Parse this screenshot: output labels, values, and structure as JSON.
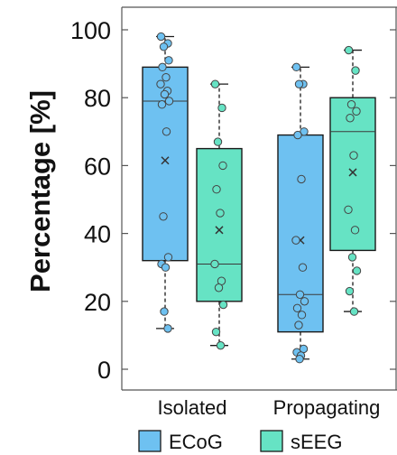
{
  "chart_data": {
    "type": "boxplot",
    "title": "",
    "xlabel": "",
    "ylabel": "Percentage [%]",
    "ylim": [
      0,
      100
    ],
    "yticks": [
      0,
      20,
      40,
      60,
      80,
      100
    ],
    "categories": [
      "Isolated",
      "Propagating"
    ],
    "legend_position": "bottom",
    "colors": {
      "ECoG": "#6ec1f1",
      "sEEG": "#66e3c4",
      "outline": "#1a1a1a"
    },
    "series": [
      {
        "name": "ECoG",
        "boxes": [
          {
            "category": "Isolated",
            "whisker_low": 12,
            "q1": 32,
            "median": 79,
            "q3": 89,
            "whisker_high": 98,
            "mean": 61.5,
            "points": [
              98,
              96,
              95,
              91,
              89,
              86,
              84,
              82,
              81,
              79,
              78,
              70,
              45,
              33,
              31,
              30,
              17,
              12
            ]
          },
          {
            "category": "Propagating",
            "whisker_low": 3,
            "q1": 11,
            "median": 22,
            "q3": 69,
            "whisker_high": 89,
            "mean": 38,
            "points": [
              89,
              84,
              84,
              70,
              69,
              56,
              38,
              30,
              22,
              20,
              18,
              16,
              13,
              6,
              5,
              4,
              3
            ]
          }
        ]
      },
      {
        "name": "sEEG",
        "boxes": [
          {
            "category": "Isolated",
            "whisker_low": 7,
            "q1": 20,
            "median": 31,
            "q3": 65,
            "whisker_high": 84,
            "mean": 41,
            "points": [
              84,
              77,
              67,
              60,
              53,
              46,
              31,
              26,
              24,
              19,
              11,
              7
            ]
          },
          {
            "category": "Propagating",
            "whisker_low": 17,
            "q1": 35,
            "median": 70,
            "q3": 80,
            "whisker_high": 94,
            "mean": 58,
            "points": [
              94,
              88,
              78,
              76,
              74,
              63,
              47,
              41,
              33,
              29,
              23,
              17
            ]
          }
        ]
      }
    ]
  }
}
